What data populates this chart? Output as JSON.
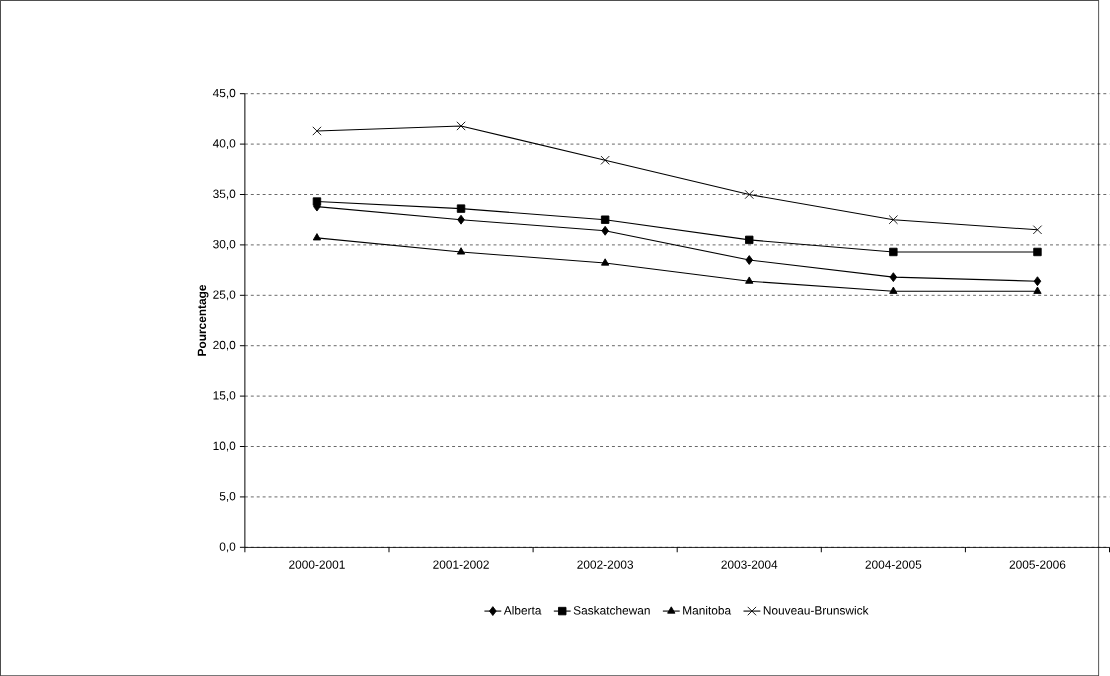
{
  "chart_data": {
    "type": "line",
    "ylabel": "Pourcentage",
    "categories": [
      "2000-2001",
      "2001-2002",
      "2002-2003",
      "2003-2004",
      "2004-2005",
      "2005-2006"
    ],
    "series": [
      {
        "name": "Alberta",
        "color": "#000000",
        "marker": "diamond",
        "values": [
          33.8,
          32.5,
          31.4,
          28.5,
          26.8,
          26.4
        ]
      },
      {
        "name": "Saskatchewan",
        "color": "#000000",
        "marker": "square",
        "values": [
          34.3,
          33.6,
          32.5,
          30.5,
          29.3,
          29.3
        ]
      },
      {
        "name": "Manitoba",
        "color": "#000000",
        "marker": "triangle",
        "values": [
          30.7,
          29.3,
          28.2,
          26.4,
          25.4,
          25.4
        ]
      },
      {
        "name": "Nouveau-Brunswick",
        "color": "#000000",
        "marker": "cross",
        "values": [
          41.3,
          41.8,
          38.4,
          35.0,
          32.5,
          31.5
        ]
      }
    ],
    "ylim": [
      0,
      45
    ],
    "yticks": [
      {
        "value": 0,
        "label": "0,0"
      },
      {
        "value": 5,
        "label": "5,0"
      },
      {
        "value": 10,
        "label": "10,0"
      },
      {
        "value": 15,
        "label": "15,0"
      },
      {
        "value": 20,
        "label": "20,0"
      },
      {
        "value": 25,
        "label": "25,0"
      },
      {
        "value": 30,
        "label": "30,0"
      },
      {
        "value": 35,
        "label": "35,0"
      },
      {
        "value": 40,
        "label": "40,0"
      },
      {
        "value": 45,
        "label": "45,0"
      }
    ],
    "grid": "y",
    "legend": "bottom",
    "line_style": "solid"
  }
}
